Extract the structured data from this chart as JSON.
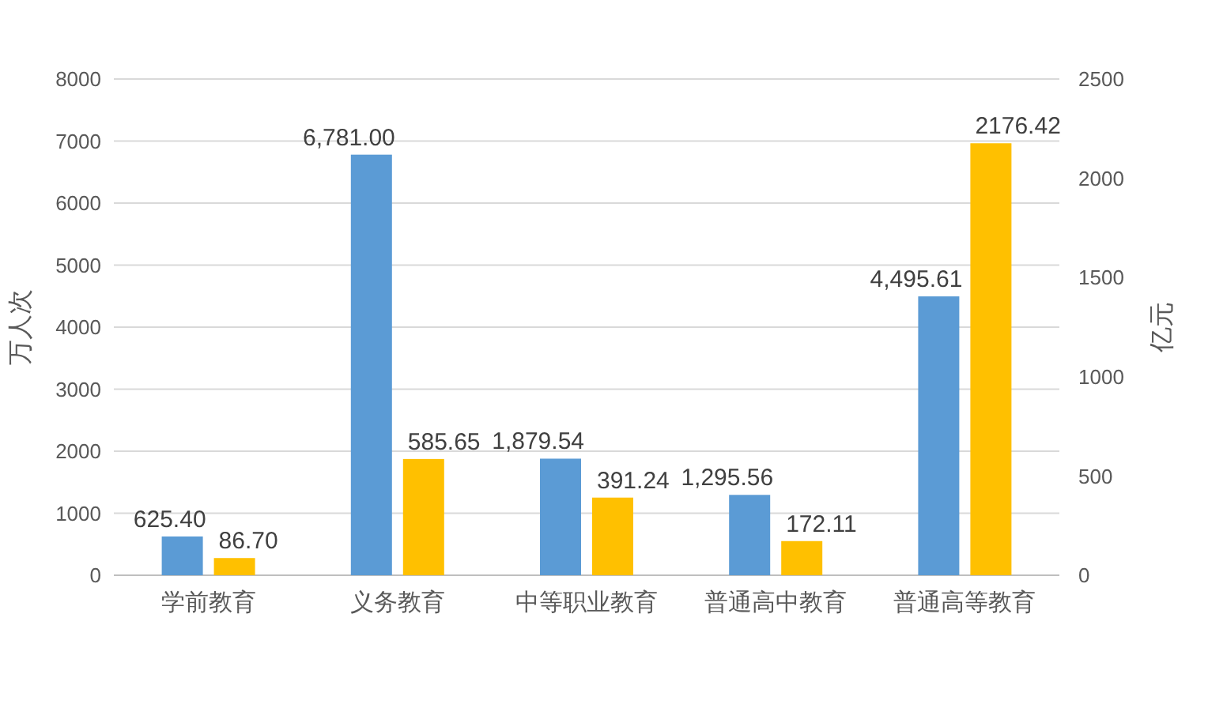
{
  "chart_data": {
    "type": "bar",
    "categories": [
      "学前教育",
      "义务教育",
      "中等职业教育",
      "普通高中教育",
      "普通高等教育"
    ],
    "ylabel": "万人次",
    "y2label": "亿元",
    "ylim": [
      0,
      8000
    ],
    "yticks": [
      0,
      1000,
      2000,
      3000,
      4000,
      5000,
      6000,
      7000,
      8000
    ],
    "y2lim": [
      0,
      2500
    ],
    "y2ticks": [
      0,
      500,
      1000,
      1500,
      2000,
      2500
    ],
    "grid": "y",
    "series": [
      {
        "color": "#5b9bd5",
        "values": [
          625.4,
          6781.0,
          1879.54,
          1295.56,
          4495.61
        ],
        "value_labels": [
          "625.40",
          "6,781.00",
          "1,879.54",
          "1,295.56",
          "4,495.61"
        ]
      },
      {
        "color": "#ffc000",
        "axis": "y2",
        "values": [
          86.7,
          585.65,
          391.24,
          172.11,
          2176.42
        ],
        "value_labels": [
          "86.70",
          "585.65",
          "391.24",
          "172.11",
          "2176.42"
        ]
      }
    ]
  }
}
